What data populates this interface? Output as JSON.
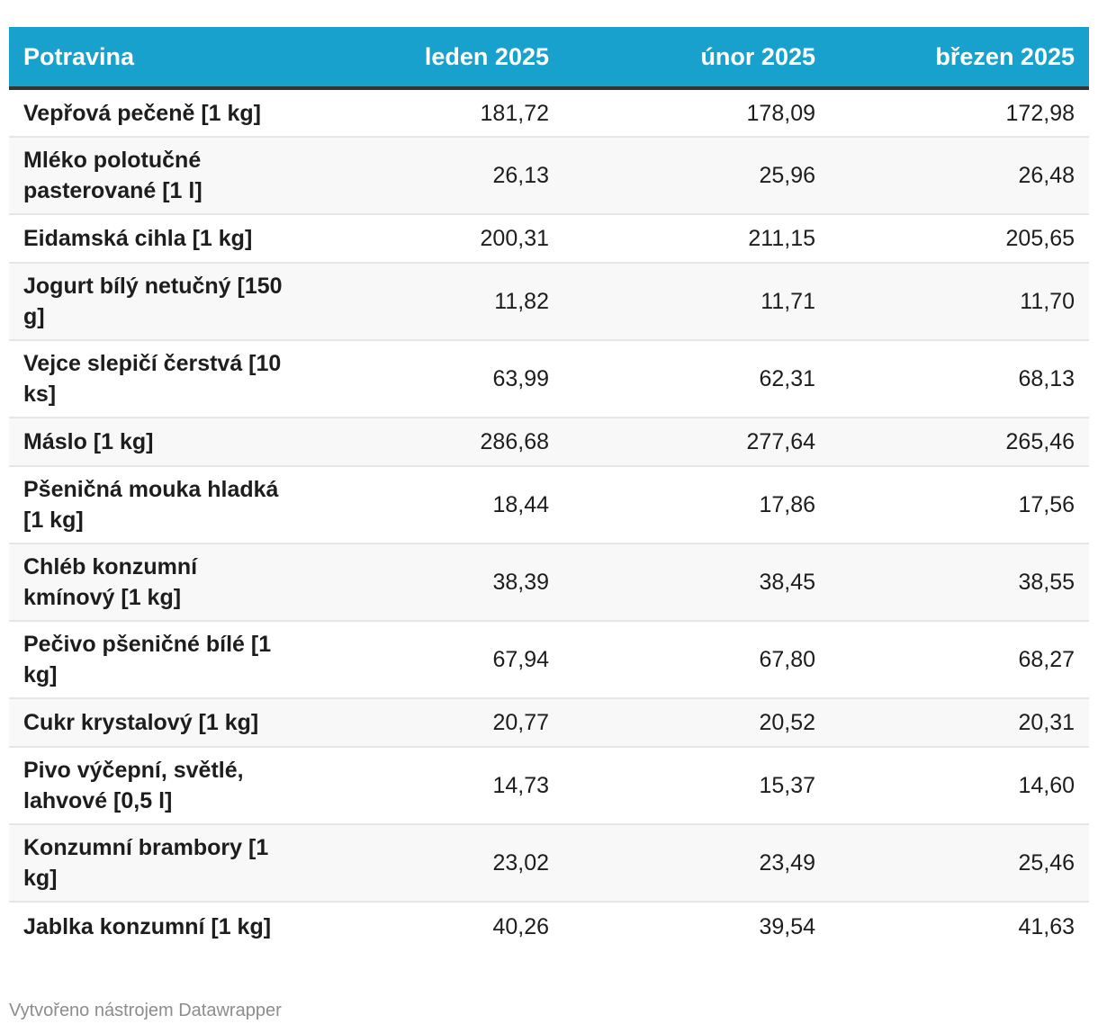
{
  "table": {
    "headers": [
      "Potravina",
      "leden 2025",
      "únor 2025",
      "březen 2025"
    ],
    "rows": [
      {
        "name": "Vepřová pečeně [1 kg]",
        "values": [
          "181,72",
          "178,09",
          "172,98"
        ]
      },
      {
        "name": "Mléko polotučné pasterované [1 l]",
        "values": [
          "26,13",
          "25,96",
          "26,48"
        ]
      },
      {
        "name": "Eidamská cihla [1 kg]",
        "values": [
          "200,31",
          "211,15",
          "205,65"
        ]
      },
      {
        "name": "Jogurt bílý netučný [150 g]",
        "values": [
          "11,82",
          "11,71",
          "11,70"
        ]
      },
      {
        "name": "Vejce slepičí čerstvá [10 ks]",
        "values": [
          "63,99",
          "62,31",
          "68,13"
        ]
      },
      {
        "name": "Máslo [1 kg]",
        "values": [
          "286,68",
          "277,64",
          "265,46"
        ]
      },
      {
        "name": "Pšeničná mouka hladká [1 kg]",
        "values": [
          "18,44",
          "17,86",
          "17,56"
        ]
      },
      {
        "name": "Chléb konzumní kmínový [1 kg]",
        "values": [
          "38,39",
          "38,45",
          "38,55"
        ]
      },
      {
        "name": "Pečivo pšeničné bílé [1 kg]",
        "values": [
          "67,94",
          "67,80",
          "68,27"
        ]
      },
      {
        "name": "Cukr krystalový [1 kg]",
        "values": [
          "20,77",
          "20,52",
          "20,31"
        ]
      },
      {
        "name": "Pivo výčepní, světlé, lahvové [0,5 l]",
        "values": [
          "14,73",
          "15,37",
          "14,60"
        ]
      },
      {
        "name": "Konzumní brambory [1 kg]",
        "values": [
          "23,02",
          "23,49",
          "25,46"
        ]
      },
      {
        "name": "Jablka konzumní [1 kg]",
        "values": [
          "40,26",
          "39,54",
          "41,63"
        ]
      }
    ]
  },
  "colors": {
    "header_bg": "#18a1cd",
    "header_text": "#ffffff",
    "header_rule": "#333333",
    "stripe": "#f8f8f8"
  },
  "footer": {
    "credit": "Vytvořeno nástrojem Datawrapper"
  }
}
